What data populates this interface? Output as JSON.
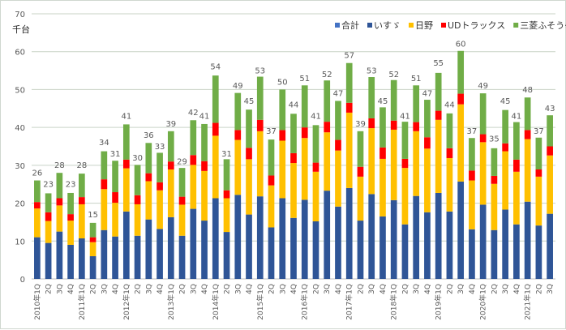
{
  "chart_data": {
    "type": "bar",
    "stacked": true,
    "title": "",
    "ylabel": "千台",
    "xlabel": "",
    "ylim": [
      0,
      70
    ],
    "yticks": [
      0,
      10,
      20,
      30,
      40,
      50,
      60,
      70
    ],
    "grid": true,
    "legend_position": "top-right",
    "categories": [
      "2010年1Q",
      "2Q",
      "3Q",
      "4Q",
      "2011年1Q",
      "2Q",
      "3Q",
      "4Q",
      "2012年1Q",
      "2Q",
      "3Q",
      "4Q",
      "2013年1Q",
      "2Q",
      "3Q",
      "4Q",
      "2014年1Q",
      "2Q",
      "3Q",
      "4Q",
      "2015年1Q",
      "2Q",
      "3Q",
      "4Q",
      "2016年1Q",
      "2Q",
      "3Q",
      "4Q",
      "2017年1Q",
      "2Q",
      "3Q",
      "4Q",
      "2018年1Q",
      "2Q",
      "3Q",
      "4Q",
      "2019年1Q",
      "2Q",
      "3Q",
      "4Q",
      "2020年1Q",
      "2Q",
      "3Q",
      "4Q",
      "2021年1Q",
      "2Q",
      "3Q"
    ],
    "legend": [
      {
        "name": "合計",
        "color": "#4472c4"
      },
      {
        "name": "いすゞ",
        "color": "#2f5597"
      },
      {
        "name": "日野",
        "color": "#ffc000"
      },
      {
        "name": "UDトラックス",
        "color": "#ff0000"
      },
      {
        "name": "三菱ふそう※",
        "color": "#70ad47"
      }
    ],
    "totals": [
      26,
      23,
      28,
      23,
      28,
      15,
      34,
      31,
      41,
      30,
      36,
      33,
      39,
      29,
      42,
      41,
      54,
      31,
      49,
      45,
      53,
      37,
      50,
      44,
      51,
      41,
      52,
      47,
      57,
      39,
      53,
      45,
      52,
      41,
      51,
      47,
      55,
      44,
      60,
      37,
      49,
      35,
      45,
      41,
      48,
      37,
      43
    ],
    "series": [
      {
        "name": "いすゞ",
        "color": "#2f5597",
        "values": [
          11,
          9.5,
          12.5,
          9,
          10.7,
          6,
          12.9,
          11.2,
          17.8,
          11.4,
          15.7,
          13.2,
          16.3,
          11.4,
          18.5,
          15.4,
          21.3,
          12.4,
          22.2,
          17,
          21.8,
          13.6,
          21.3,
          16.1,
          20.9,
          15.2,
          23.3,
          19.1,
          24,
          15.4,
          22.4,
          16.5,
          20.8,
          14.4,
          21.9,
          17.6,
          22.7,
          17.8,
          25.7,
          13.1,
          19.6,
          12.9,
          18.3,
          14.4,
          20.4,
          14.1,
          17.2
        ]
      },
      {
        "name": "日野",
        "color": "#ffc000",
        "values": [
          7.6,
          5.8,
          6.9,
          6.4,
          9,
          3.7,
          10.8,
          8.9,
          11.4,
          8.3,
          10.1,
          10.2,
          12.6,
          8.2,
          11.6,
          13.1,
          16.5,
          8.9,
          14.5,
          14.6,
          17.2,
          11.1,
          15.2,
          14.5,
          16.3,
          13.1,
          15.4,
          14.8,
          19.9,
          11.6,
          17.4,
          15.2,
          18.6,
          14.9,
          17.1,
          16.8,
          19.3,
          14.1,
          20.4,
          12.9,
          16.5,
          12.2,
          15.4,
          13.9,
          16.5,
          12.9,
          15.4
        ]
      },
      {
        "name": "UDトラックス",
        "color": "#ff0000",
        "values": [
          1.7,
          2.3,
          1.9,
          1.7,
          1.9,
          1.3,
          2.6,
          2.8,
          2.3,
          2.4,
          2.1,
          2.1,
          2.1,
          2.1,
          2.6,
          2.6,
          3.4,
          2.1,
          2.6,
          3,
          3,
          2.6,
          2.8,
          2.6,
          2.8,
          2.4,
          2.8,
          2.8,
          2.6,
          2.6,
          2.6,
          3,
          2.4,
          2.4,
          2.4,
          3,
          2.4,
          2.6,
          2.8,
          2.6,
          2.1,
          2.1,
          2.1,
          3.2,
          2.4,
          1.9,
          2.4
        ]
      },
      {
        "name": "三菱ふそう※",
        "color": "#70ad47",
        "values": [
          5.7,
          5,
          6.7,
          5.6,
          6.2,
          3.8,
          7.4,
          8.3,
          9.3,
          8,
          8,
          7.8,
          8,
          7.6,
          9.2,
          9.8,
          12.5,
          8.2,
          9.8,
          10.1,
          11.4,
          9.5,
          10.7,
          10.4,
          11.1,
          9.9,
          10.9,
          10.3,
          10.5,
          9.4,
          10.9,
          10.6,
          10.7,
          9.8,
          9.7,
          9.9,
          10,
          9.2,
          11.3,
          8.6,
          10.8,
          7.3,
          8.8,
          9.9,
          8.6,
          8.4,
          8.2
        ]
      }
    ]
  }
}
